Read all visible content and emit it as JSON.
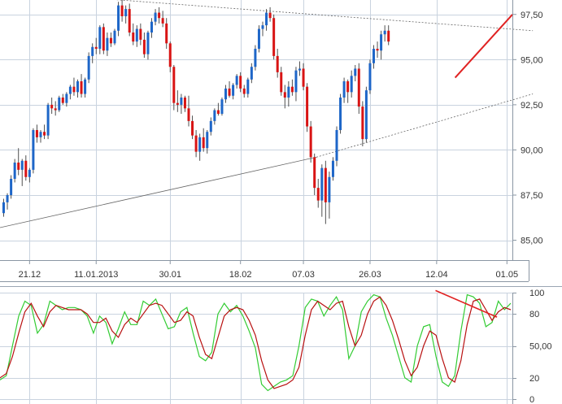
{
  "colors": {
    "up": "#1e66c8",
    "down": "#d81414",
    "grid": "#c9d3df",
    "axis": "#8a96a3",
    "trend_dotted": "#666666",
    "trend_red": "#e02222",
    "stoch_k": "#33cc33",
    "stoch_d": "#b81010"
  },
  "chart_data": [
    {
      "type": "candlestick",
      "title": "",
      "x": {
        "tick_labels": [
          "21.12",
          "11.01.2013",
          "30.01",
          "18.02",
          "07.03",
          "26.03",
          "12.04",
          "01.05"
        ],
        "tick_bar_index": [
          7,
          25,
          45,
          64,
          81,
          99,
          117,
          136
        ]
      },
      "y": {
        "ticks": [
          85.0,
          87.5,
          90.0,
          92.5,
          95.0,
          97.5
        ],
        "tick_labels": [
          "85,00",
          "87,50",
          "90,00",
          "92,50",
          "95,00",
          "97,50"
        ],
        "range": [
          83.9,
          98.3
        ]
      },
      "grid": true,
      "ohlc": [
        [
          86.5,
          87.3,
          86.3,
          87.1
        ],
        [
          87.1,
          87.6,
          86.7,
          87.5
        ],
        [
          87.5,
          88.6,
          87.3,
          88.4
        ],
        [
          88.4,
          89.5,
          88.2,
          89.3
        ],
        [
          89.3,
          90.1,
          88.6,
          88.9
        ],
        [
          88.9,
          89.5,
          88.0,
          89.4
        ],
        [
          89.4,
          89.7,
          88.3,
          88.5
        ],
        [
          88.5,
          89.0,
          88.2,
          88.9
        ],
        [
          88.9,
          91.2,
          88.7,
          91.1
        ],
        [
          91.1,
          91.4,
          90.4,
          90.7
        ],
        [
          90.7,
          91.1,
          90.4,
          91.0
        ],
        [
          91.0,
          91.4,
          90.6,
          90.8
        ],
        [
          90.8,
          92.6,
          90.6,
          92.5
        ],
        [
          92.5,
          92.9,
          92.0,
          92.3
        ],
        [
          92.3,
          92.7,
          91.9,
          92.2
        ],
        [
          92.2,
          93.0,
          92.1,
          92.9
        ],
        [
          92.9,
          93.1,
          92.5,
          92.6
        ],
        [
          92.6,
          93.2,
          92.4,
          93.1
        ],
        [
          93.1,
          93.6,
          92.8,
          93.5
        ],
        [
          93.5,
          94.0,
          93.0,
          93.2
        ],
        [
          93.2,
          93.9,
          92.9,
          93.8
        ],
        [
          93.8,
          94.2,
          92.9,
          93.1
        ],
        [
          93.1,
          94.0,
          92.9,
          93.9
        ],
        [
          93.9,
          95.4,
          93.7,
          95.2
        ],
        [
          95.2,
          95.9,
          94.8,
          95.7
        ],
        [
          95.7,
          96.2,
          95.3,
          95.6
        ],
        [
          95.6,
          96.9,
          95.3,
          96.8
        ],
        [
          96.8,
          97.0,
          95.3,
          95.5
        ],
        [
          95.5,
          96.5,
          95.2,
          96.2
        ],
        [
          96.2,
          96.5,
          95.7,
          95.9
        ],
        [
          95.9,
          96.7,
          95.8,
          96.6
        ],
        [
          96.6,
          98.2,
          96.3,
          98.0
        ],
        [
          98.0,
          98.3,
          97.1,
          97.4
        ],
        [
          97.4,
          98.0,
          97.0,
          97.8
        ],
        [
          97.8,
          98.1,
          96.3,
          96.5
        ],
        [
          96.5,
          97.0,
          95.8,
          96.0
        ],
        [
          96.0,
          96.9,
          95.7,
          96.7
        ],
        [
          96.7,
          97.0,
          95.8,
          96.1
        ],
        [
          96.1,
          96.5,
          95.1,
          95.3
        ],
        [
          95.3,
          96.6,
          95.0,
          96.5
        ],
        [
          96.5,
          97.3,
          96.2,
          97.1
        ],
        [
          97.1,
          97.8,
          96.9,
          97.6
        ],
        [
          97.6,
          97.9,
          97.0,
          97.3
        ],
        [
          97.3,
          97.7,
          96.8,
          97.0
        ],
        [
          97.0,
          97.3,
          95.6,
          95.9
        ],
        [
          95.9,
          96.0,
          94.3,
          94.6
        ],
        [
          94.6,
          94.7,
          92.2,
          92.6
        ],
        [
          92.6,
          93.3,
          92.1,
          92.5
        ],
        [
          92.5,
          93.1,
          92.0,
          92.9
        ],
        [
          92.9,
          93.0,
          92.1,
          92.3
        ],
        [
          92.3,
          93.0,
          91.3,
          91.6
        ],
        [
          91.6,
          91.9,
          90.6,
          90.8
        ],
        [
          90.8,
          91.1,
          89.6,
          89.9
        ],
        [
          89.9,
          90.9,
          89.4,
          90.7
        ],
        [
          90.7,
          91.2,
          89.9,
          90.1
        ],
        [
          90.1,
          91.1,
          89.8,
          91.0
        ],
        [
          91.0,
          91.8,
          90.8,
          91.6
        ],
        [
          91.6,
          92.3,
          91.4,
          92.2
        ],
        [
          92.2,
          92.6,
          91.9,
          92.0
        ],
        [
          92.0,
          92.9,
          91.9,
          92.8
        ],
        [
          92.8,
          93.6,
          92.6,
          93.4
        ],
        [
          93.4,
          93.8,
          92.9,
          93.0
        ],
        [
          93.0,
          93.7,
          92.8,
          93.6
        ],
        [
          93.6,
          94.2,
          93.4,
          94.1
        ],
        [
          94.1,
          94.3,
          93.2,
          93.4
        ],
        [
          93.4,
          93.6,
          92.9,
          93.1
        ],
        [
          93.1,
          94.0,
          92.9,
          93.9
        ],
        [
          93.9,
          94.8,
          93.7,
          94.6
        ],
        [
          94.6,
          95.8,
          94.4,
          95.6
        ],
        [
          95.6,
          96.9,
          95.4,
          96.7
        ],
        [
          96.7,
          97.1,
          96.3,
          96.9
        ],
        [
          96.9,
          97.8,
          96.6,
          97.6
        ],
        [
          97.6,
          97.9,
          97.1,
          97.3
        ],
        [
          97.3,
          97.5,
          95.0,
          95.2
        ],
        [
          95.2,
          95.6,
          94.0,
          94.3
        ],
        [
          94.3,
          94.6,
          93.0,
          93.2
        ],
        [
          93.2,
          93.6,
          92.3,
          92.9
        ],
        [
          92.9,
          93.8,
          92.4,
          93.5
        ],
        [
          93.5,
          93.9,
          93.0,
          93.2
        ],
        [
          93.2,
          94.6,
          92.7,
          94.4
        ],
        [
          94.4,
          94.9,
          94.1,
          94.5
        ],
        [
          94.5,
          94.8,
          93.3,
          93.5
        ],
        [
          93.5,
          93.7,
          91.0,
          91.3
        ],
        [
          91.3,
          91.6,
          89.3,
          89.6
        ],
        [
          89.6,
          89.8,
          87.5,
          87.9
        ],
        [
          87.9,
          88.4,
          86.8,
          87.2
        ],
        [
          87.2,
          89.2,
          86.3,
          89.0
        ],
        [
          89.0,
          89.4,
          85.9,
          87.1
        ],
        [
          87.1,
          88.8,
          86.2,
          88.5
        ],
        [
          88.5,
          89.6,
          88.3,
          89.4
        ],
        [
          89.4,
          91.3,
          89.1,
          91.1
        ],
        [
          91.1,
          93.1,
          90.9,
          92.9
        ],
        [
          92.9,
          94.0,
          92.6,
          93.8
        ],
        [
          93.8,
          93.9,
          92.6,
          93.2
        ],
        [
          93.2,
          94.4,
          92.9,
          94.1
        ],
        [
          94.1,
          94.7,
          93.8,
          94.5
        ],
        [
          94.5,
          94.8,
          92.0,
          92.4
        ],
        [
          92.4,
          92.7,
          90.2,
          90.6
        ],
        [
          90.6,
          93.5,
          90.4,
          93.3
        ],
        [
          93.3,
          95.0,
          93.1,
          94.8
        ],
        [
          94.8,
          95.8,
          94.5,
          95.6
        ],
        [
          95.6,
          96.0,
          95.1,
          95.5
        ],
        [
          95.5,
          96.6,
          95.0,
          96.4
        ],
        [
          96.4,
          96.9,
          96.0,
          96.6
        ],
        [
          96.6,
          96.9,
          95.8,
          96.0
        ]
      ],
      "annotations": [
        {
          "type": "trendline",
          "style": "dotted",
          "color": "#666666",
          "from": {
            "x_bar": -8,
            "y": 98.9
          },
          "to": {
            "x_bar": 143,
            "y": 96.6
          }
        },
        {
          "type": "trendline",
          "style": "solid",
          "color": "#666666",
          "from": {
            "x_bar": -1,
            "y": 85.7
          },
          "to": {
            "x_bar": 84.5,
            "y": 89.6
          }
        },
        {
          "type": "trendline",
          "style": "dotted",
          "color": "#666666",
          "from": {
            "x_bar": 84.5,
            "y": 89.6
          },
          "to": {
            "x_bar": 143,
            "y": 93.1
          }
        },
        {
          "type": "trendline",
          "style": "solid",
          "color": "#e02222",
          "from": {
            "x_bar": 122,
            "y": 94.0
          },
          "to": {
            "x_bar": 137.5,
            "y": 97.5
          }
        }
      ]
    },
    {
      "type": "line",
      "title": "",
      "y": {
        "ticks": [
          0,
          20,
          50,
          80,
          100
        ],
        "tick_labels": [
          "0",
          "20",
          "50,00",
          "80",
          "100"
        ],
        "range": [
          0,
          100
        ]
      },
      "grid": true,
      "series": [
        {
          "color": "#33cc33",
          "values": [
            18,
            22,
            50,
            78,
            92,
            88,
            62,
            70,
            92,
            88,
            84,
            86,
            86,
            84,
            78,
            62,
            78,
            72,
            52,
            66,
            82,
            70,
            70,
            92,
            88,
            94,
            80,
            66,
            68,
            82,
            86,
            62,
            40,
            36,
            44,
            80,
            90,
            82,
            88,
            78,
            64,
            48,
            14,
            8,
            12,
            16,
            18,
            22,
            50,
            86,
            94,
            92,
            78,
            88,
            96,
            84,
            38,
            50,
            82,
            92,
            98,
            96,
            76,
            60,
            40,
            20,
            16,
            50,
            68,
            70,
            40,
            16,
            12,
            22,
            64,
            98,
            96,
            90,
            68,
            72,
            92,
            84,
            90
          ]
        },
        {
          "color": "#b81010",
          "values": [
            20,
            24,
            40,
            62,
            82,
            90,
            78,
            68,
            82,
            88,
            86,
            84,
            84,
            84,
            80,
            72,
            72,
            76,
            64,
            58,
            70,
            76,
            72,
            80,
            88,
            90,
            88,
            80,
            72,
            74,
            82,
            78,
            58,
            42,
            38,
            58,
            78,
            84,
            86,
            84,
            74,
            60,
            36,
            18,
            10,
            12,
            14,
            18,
            30,
            60,
            84,
            92,
            88,
            84,
            90,
            92,
            68,
            50,
            60,
            80,
            92,
            96,
            88,
            74,
            56,
            36,
            22,
            30,
            50,
            64,
            60,
            38,
            20,
            16,
            36,
            70,
            92,
            94,
            84,
            74,
            82,
            86,
            84
          ]
        }
      ],
      "annotations": [
        {
          "type": "trendline",
          "style": "solid",
          "color": "#e02222",
          "from": {
            "x_frac": 0.85,
            "y": 102
          },
          "to": {
            "x_frac": 0.97,
            "y": 77
          }
        }
      ]
    }
  ]
}
